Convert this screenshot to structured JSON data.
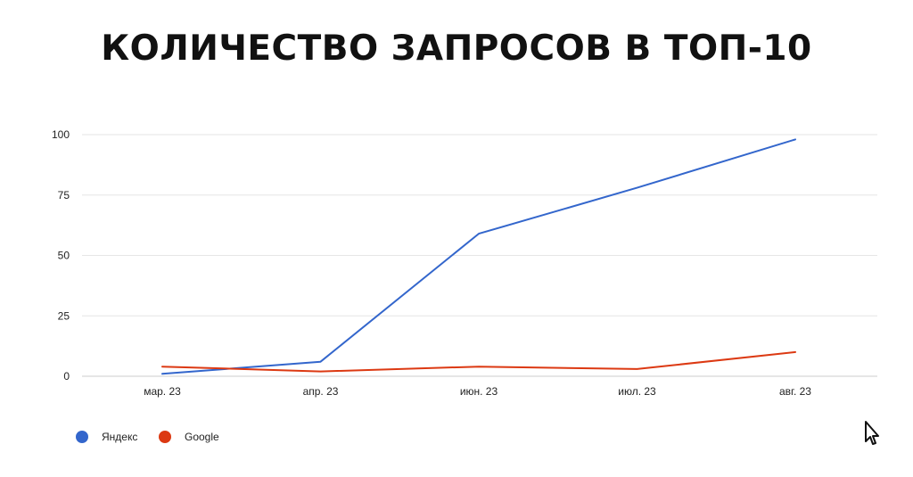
{
  "chart_data": {
    "type": "line",
    "title": "КОЛИЧЕСТВО ЗАПРОСОВ В ТОП-10",
    "categories": [
      "мар. 23",
      "апр. 23",
      "июн. 23",
      "июл. 23",
      "авг. 23"
    ],
    "series": [
      {
        "name": "Яндекс",
        "color": "#3366cc",
        "values": [
          1,
          6,
          59,
          78,
          98
        ]
      },
      {
        "name": "Google",
        "color": "#dc3912",
        "values": [
          4,
          2,
          4,
          3,
          10
        ]
      }
    ],
    "xlabel": "",
    "ylabel": "",
    "ylim": [
      0,
      100
    ],
    "yticks": [
      "0",
      "25",
      "50",
      "75",
      "100"
    ],
    "grid": true,
    "legend_position": "bottom-left"
  },
  "cursor": {
    "icon": "mouse-pointer-icon"
  }
}
